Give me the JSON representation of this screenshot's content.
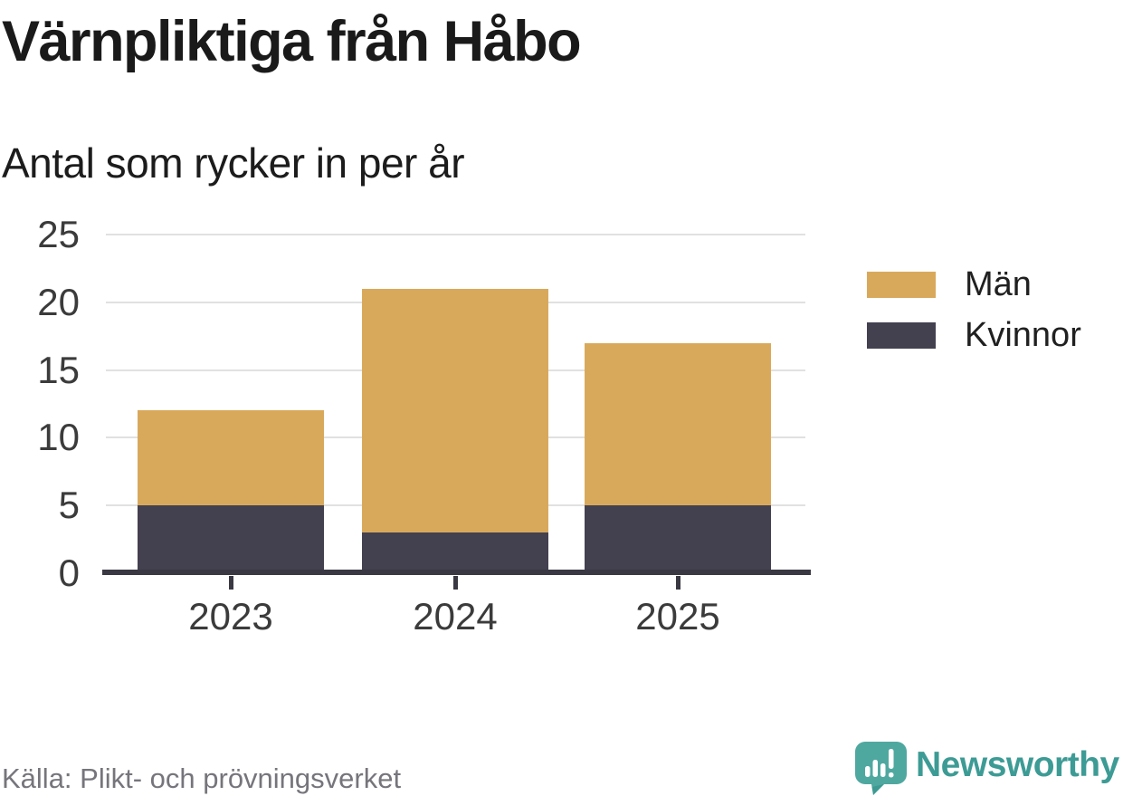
{
  "header": {
    "title": "Värnpliktiga från Håbo",
    "subtitle": "Antal som rycker in per år"
  },
  "chart_data": {
    "type": "bar",
    "stacked": true,
    "title": "Värnpliktiga från Håbo",
    "subtitle": "Antal som rycker in per år",
    "categories": [
      "2023",
      "2024",
      "2025"
    ],
    "series": [
      {
        "name": "Män",
        "color": "#d9a95b",
        "values": [
          7,
          18,
          12
        ]
      },
      {
        "name": "Kvinnor",
        "color": "#434050",
        "values": [
          5,
          3,
          5
        ]
      }
    ],
    "stack_order_bottom_to_top": [
      "Kvinnor",
      "Män"
    ],
    "totals": [
      12,
      21,
      17
    ],
    "xlabel": "",
    "ylabel": "",
    "ylim": [
      0,
      25
    ],
    "yticks": [
      0,
      5,
      10,
      15,
      20,
      25
    ],
    "grid": "horizontal",
    "legend_position": "right"
  },
  "footer": {
    "source": "Källa: Plikt- och prövningsverket",
    "brand": "Newsworthy"
  },
  "colors": {
    "man": "#d9a95b",
    "kvinnor": "#434050",
    "axis": "#3a3842",
    "grid": "#e1e1e1",
    "title_text": "#1a1a1a",
    "tick_text": "#3b3b3b",
    "source_text": "#76757b",
    "brand_teal": "#3d9b95",
    "brand_icon_teal": "#4fa8a0",
    "brand_icon_shadow": "#2e8e87"
  }
}
